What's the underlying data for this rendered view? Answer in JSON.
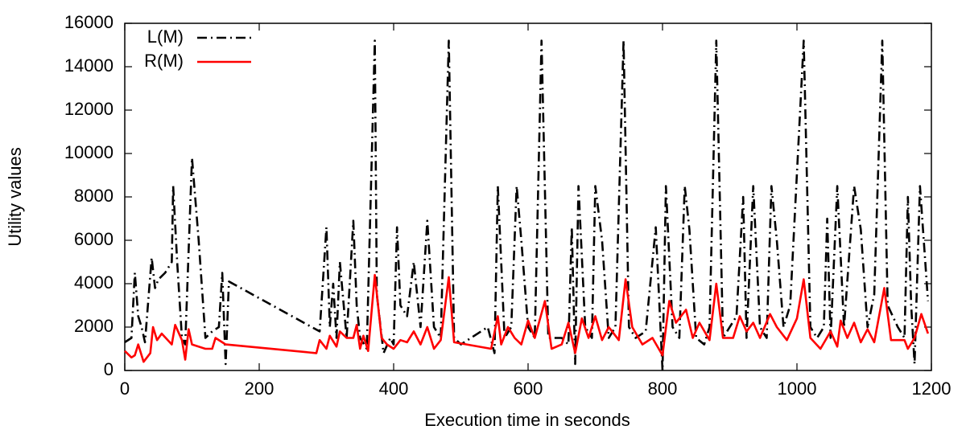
{
  "chart_data": {
    "type": "line",
    "xlabel": "Execution time in seconds",
    "ylabel": "Utility values",
    "xlim": [
      0,
      1200
    ],
    "xticks": [
      0,
      200,
      400,
      600,
      800,
      1000,
      1200
    ],
    "ylim": [
      0,
      16000
    ],
    "yticks": [
      0,
      2000,
      4000,
      6000,
      8000,
      10000,
      12000,
      14000,
      16000
    ],
    "legend": "top-left",
    "series": [
      {
        "name": "L(M)",
        "color": "#000000",
        "dash": "dash-dot",
        "x": [
          0,
          10,
          15,
          20,
          25,
          30,
          40,
          45,
          50,
          60,
          70,
          72,
          78,
          85,
          90,
          100,
          110,
          120,
          130,
          140,
          145,
          150,
          155,
          290,
          300,
          305,
          310,
          315,
          320,
          330,
          340,
          345,
          350,
          360,
          372,
          375,
          385,
          395,
          400,
          405,
          410,
          420,
          430,
          440,
          450,
          460,
          470,
          482,
          490,
          500,
          540,
          550,
          555,
          565,
          575,
          583,
          590,
          600,
          610,
          620,
          630,
          650,
          660,
          665,
          670,
          675,
          685,
          695,
          700,
          710,
          720,
          730,
          742,
          750,
          760,
          775,
          790,
          800,
          805,
          815,
          825,
          833,
          840,
          850,
          862,
          870,
          880,
          890,
          900,
          910,
          920,
          925,
          935,
          945,
          955,
          962,
          970,
          980,
          990,
          1010,
          1020,
          1030,
          1040,
          1045,
          1050,
          1060,
          1070,
          1085,
          1095,
          1105,
          1115,
          1127,
          1135,
          1150,
          1160,
          1165,
          1170,
          1175,
          1183,
          1195
        ],
        "values": [
          1300,
          1500,
          4500,
          2500,
          2000,
          1300,
          5200,
          3800,
          4200,
          4500,
          5000,
          8500,
          5000,
          1500,
          1200,
          9800,
          6000,
          1500,
          1800,
          2000,
          4500,
          300,
          4100,
          1800,
          6600,
          2000,
          4000,
          1500,
          5000,
          1500,
          6900,
          3000,
          1500,
          1000,
          15200,
          3500,
          800,
          1500,
          1200,
          6600,
          3000,
          2500,
          5000,
          2000,
          6900,
          2000,
          1500,
          15200,
          1500,
          1200,
          2000,
          800,
          8500,
          1500,
          2000,
          8500,
          6000,
          2000,
          1500,
          15200,
          1500,
          1500,
          1200,
          6600,
          300,
          8500,
          2000,
          1500,
          8500,
          6000,
          1500,
          2000,
          15200,
          2000,
          1500,
          1800,
          6600,
          0,
          8500,
          2000,
          1500,
          8500,
          6500,
          1500,
          1200,
          2000,
          15200,
          1500,
          2000,
          2500,
          8000,
          1500,
          8500,
          2000,
          1500,
          8500,
          6000,
          2000,
          3000,
          15200,
          2000,
          1500,
          2000,
          7000,
          1500,
          8500,
          2000,
          8500,
          6500,
          2000,
          3500,
          15200,
          3000,
          2000,
          1500,
          8000,
          3000,
          300,
          8500,
          3200
        ]
      },
      {
        "name": "R(M)",
        "color": "#ff0000",
        "dash": "solid",
        "x": [
          0,
          10,
          15,
          20,
          28,
          38,
          42,
          48,
          55,
          70,
          75,
          85,
          90,
          95,
          100,
          120,
          130,
          135,
          145,
          150,
          285,
          290,
          300,
          305,
          315,
          320,
          330,
          340,
          345,
          350,
          355,
          362,
          372,
          382,
          390,
          400,
          410,
          420,
          430,
          440,
          450,
          460,
          470,
          482,
          490,
          545,
          555,
          560,
          570,
          580,
          590,
          600,
          610,
          625,
          635,
          650,
          660,
          670,
          680,
          690,
          700,
          710,
          720,
          735,
          745,
          755,
          770,
          785,
          800,
          810,
          820,
          835,
          845,
          855,
          870,
          880,
          890,
          905,
          915,
          925,
          935,
          945,
          960,
          970,
          985,
          1000,
          1010,
          1020,
          1035,
          1050,
          1060,
          1065,
          1075,
          1085,
          1095,
          1105,
          1115,
          1130,
          1140,
          1160,
          1165,
          1175,
          1185,
          1195
        ],
        "values": [
          900,
          600,
          700,
          1200,
          400,
          800,
          2000,
          1400,
          1700,
          1200,
          2100,
          1400,
          500,
          1900,
          1200,
          1000,
          1000,
          1500,
          1300,
          1200,
          800,
          1400,
          1000,
          1600,
          1100,
          1800,
          1500,
          1500,
          2100,
          1000,
          1600,
          900,
          4400,
          1500,
          1200,
          1000,
          1400,
          1300,
          1800,
          1200,
          2000,
          1000,
          1400,
          4300,
          1300,
          1000,
          2500,
          1200,
          2000,
          1500,
          1200,
          2300,
          1500,
          3200,
          1000,
          1200,
          2200,
          800,
          2400,
          1500,
          2500,
          1400,
          2000,
          1400,
          4200,
          2000,
          1200,
          1500,
          700,
          3200,
          2200,
          2800,
          1500,
          2200,
          1400,
          4000,
          1500,
          1500,
          2500,
          1800,
          2200,
          1500,
          2600,
          2000,
          1400,
          2400,
          4200,
          1500,
          1000,
          1800,
          1100,
          2300,
          1500,
          2200,
          1300,
          1900,
          1300,
          3800,
          1400,
          1400,
          1000,
          1500,
          2600,
          1700
        ]
      }
    ]
  }
}
